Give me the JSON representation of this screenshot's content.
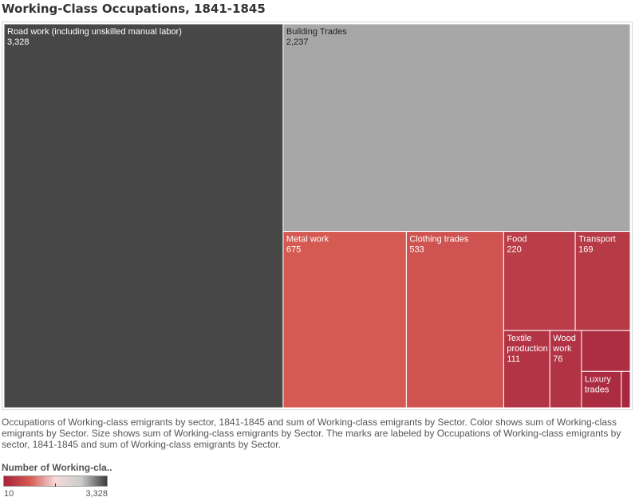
{
  "page": {
    "title": "Working-Class Occupations, 1841-1845",
    "description": "Occupations of Working-class emigrants by sector, 1841-1845 and sum of Working-class emigrants by Sector.  Color shows sum of Working-class emigrants by Sector.  Size shows sum of Working-class emigrants by Sector.  The marks are labeled by Occupations of Working-class emigrants by sector, 1841-1845 and sum of Working-class emigrants by Sector."
  },
  "legend": {
    "title": "Number of Working-cla..",
    "min_label": "10",
    "max_label": "3,328",
    "gradient_colors": [
      "#a8223a",
      "#d45a52",
      "#f6dada",
      "#cccccc",
      "#3b3b3b"
    ]
  },
  "colors": {
    "border": "#ffffff",
    "label_dark": "#222222",
    "label_light": "#ffffff"
  },
  "chart_data": {
    "type": "treemap",
    "items": [
      {
        "name": "Road work (including unskilled manual labor)",
        "value": 3328,
        "value_label": "3,328",
        "color": "#474747",
        "show_label": true,
        "label_color": "light"
      },
      {
        "name": "Building Trades",
        "value": 2237,
        "value_label": "2,237",
        "color": "#a7a7a7",
        "show_label": true,
        "label_color": "dark"
      },
      {
        "name": "Metal work",
        "value": 675,
        "value_label": "675",
        "color": "#d45a52",
        "show_label": true,
        "label_color": "light"
      },
      {
        "name": "Clothing trades",
        "value": 533,
        "value_label": "533",
        "color": "#cf5350",
        "show_label": true,
        "label_color": "light"
      },
      {
        "name": "Food",
        "value": 220,
        "value_label": "220",
        "color": "#ba3d48",
        "show_label": true,
        "label_color": "light"
      },
      {
        "name": "Transport",
        "value": 169,
        "value_label": "169",
        "color": "#b73a47",
        "show_label": true,
        "label_color": "light"
      },
      {
        "name": "Textile production",
        "value": 111,
        "value_label": "111",
        "color": "#b33545",
        "show_label": true,
        "label_color": "light"
      },
      {
        "name": "Wood work",
        "value": 76,
        "value_label": "76",
        "color": "#b13344",
        "show_label": true,
        "label_color": "light"
      },
      {
        "name": "",
        "value": 62,
        "value_label": "",
        "color": "#ad2e42",
        "show_label": false,
        "label_color": "light"
      },
      {
        "name": "Luxury trades",
        "value": 45,
        "value_label": "",
        "color": "#ab2b40",
        "show_label": true,
        "label_color": "light"
      },
      {
        "name": "",
        "value": 10,
        "value_label": "",
        "color": "#a8263d",
        "show_label": false,
        "label_color": "light"
      }
    ]
  }
}
